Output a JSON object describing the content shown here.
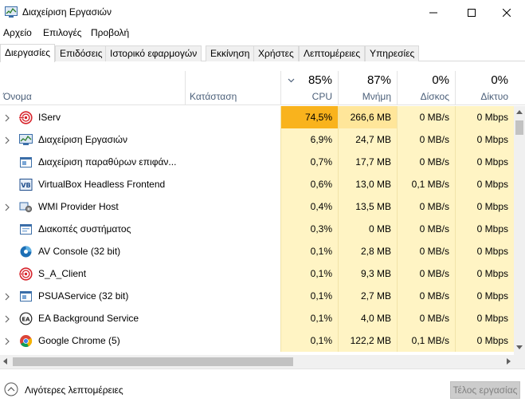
{
  "window": {
    "title": "Διαχείριση Εργασιών",
    "icon": "task-manager-icon"
  },
  "menu": [
    "Αρχείο",
    "Επιλογές",
    "Προβολή"
  ],
  "tabs": [
    {
      "label": "Διεργασίες",
      "active": true
    },
    {
      "label": "Επιδόσεις",
      "active": false
    },
    {
      "label": "Ιστορικό εφαρμογών",
      "active": false
    },
    {
      "label": "Εκκίνηση",
      "active": false
    },
    {
      "label": "Χρήστες",
      "active": false
    },
    {
      "label": "Λεπτομέρειες",
      "active": false
    },
    {
      "label": "Υπηρεσίες",
      "active": false
    }
  ],
  "columns": {
    "name": "Όνομα",
    "status": "Κατάσταση",
    "cpu": {
      "percent": "85%",
      "label": "CPU"
    },
    "memory": {
      "percent": "87%",
      "label": "Μνήμη"
    },
    "disk": {
      "percent": "0%",
      "label": "Δίσκος"
    },
    "network": {
      "percent": "0%",
      "label": "Δίκτυο"
    }
  },
  "processes": [
    {
      "name": "IServ",
      "icon": "iserv-icon",
      "expandable": true,
      "cpu": "74,5%",
      "memory": "266,6 MB",
      "disk": "0 MB/s",
      "network": "0 Mbps",
      "cpu_color": "#f9b31d",
      "memory_color": "#ffe69a",
      "disk_color": "#fff4c4",
      "network_color": "#fff4c4"
    },
    {
      "name": "Διαχείριση Εργασιών",
      "icon": "task-manager-icon",
      "expandable": true,
      "cpu": "6,9%",
      "memory": "24,7 MB",
      "disk": "0 MB/s",
      "network": "0 Mbps",
      "cpu_color": "#fff4c4",
      "memory_color": "#fff4c4",
      "disk_color": "#fff4c4",
      "network_color": "#fff4c4"
    },
    {
      "name": "Διαχείριση παραθύρων επιφάν...",
      "icon": "window-icon",
      "expandable": false,
      "cpu": "0,7%",
      "memory": "17,7 MB",
      "disk": "0 MB/s",
      "network": "0 Mbps",
      "cpu_color": "#fff4c4",
      "memory_color": "#fff4c4",
      "disk_color": "#fff4c4",
      "network_color": "#fff4c4"
    },
    {
      "name": "VirtualBox Headless Frontend",
      "icon": "virtualbox-icon",
      "expandable": false,
      "cpu": "0,6%",
      "memory": "13,0 MB",
      "disk": "0,1 MB/s",
      "network": "0 Mbps",
      "cpu_color": "#fff4c4",
      "memory_color": "#fff4c4",
      "disk_color": "#fff4c4",
      "network_color": "#fff4c4"
    },
    {
      "name": "WMI Provider Host",
      "icon": "wmi-icon",
      "expandable": true,
      "cpu": "0,4%",
      "memory": "13,5 MB",
      "disk": "0 MB/s",
      "network": "0 Mbps",
      "cpu_color": "#fff4c4",
      "memory_color": "#fff4c4",
      "disk_color": "#fff4c4",
      "network_color": "#fff4c4"
    },
    {
      "name": "Διακοπές συστήματος",
      "icon": "system-icon",
      "expandable": false,
      "cpu": "0,3%",
      "memory": "0 MB",
      "disk": "0 MB/s",
      "network": "0 Mbps",
      "cpu_color": "#fff4c4",
      "memory_color": "#fff4c4",
      "disk_color": "#fff4c4",
      "network_color": "#fff4c4"
    },
    {
      "name": "AV Console (32 bit)",
      "icon": "av-console-icon",
      "expandable": false,
      "cpu": "0,1%",
      "memory": "2,8 MB",
      "disk": "0 MB/s",
      "network": "0 Mbps",
      "cpu_color": "#fff4c4",
      "memory_color": "#fff4c4",
      "disk_color": "#fff4c4",
      "network_color": "#fff4c4"
    },
    {
      "name": "S_A_Client",
      "icon": "iserv-icon",
      "expandable": false,
      "cpu": "0,1%",
      "memory": "9,3 MB",
      "disk": "0 MB/s",
      "network": "0 Mbps",
      "cpu_color": "#fff4c4",
      "memory_color": "#fff4c4",
      "disk_color": "#fff4c4",
      "network_color": "#fff4c4"
    },
    {
      "name": "PSUAService (32 bit)",
      "icon": "window-icon",
      "expandable": true,
      "cpu": "0,1%",
      "memory": "2,7 MB",
      "disk": "0 MB/s",
      "network": "0 Mbps",
      "cpu_color": "#fff4c4",
      "memory_color": "#fff4c4",
      "disk_color": "#fff4c4",
      "network_color": "#fff4c4"
    },
    {
      "name": "EA Background Service",
      "icon": "ea-icon",
      "expandable": true,
      "cpu": "0,1%",
      "memory": "4,0 MB",
      "disk": "0 MB/s",
      "network": "0 Mbps",
      "cpu_color": "#fff4c4",
      "memory_color": "#fff4c4",
      "disk_color": "#fff4c4",
      "network_color": "#fff4c4"
    },
    {
      "name": "Google Chrome (5)",
      "icon": "chrome-icon",
      "expandable": true,
      "cpu": "0,1%",
      "memory": "122,2 MB",
      "disk": "0,1 MB/s",
      "network": "0 Mbps",
      "cpu_color": "#fff4c4",
      "memory_color": "#fff4c4",
      "disk_color": "#fff4c4",
      "network_color": "#fff4c4"
    }
  ],
  "footer": {
    "fewer_details": "Λιγότερες λεπτομέρειες",
    "end_task": "Τέλος εργασίας"
  }
}
